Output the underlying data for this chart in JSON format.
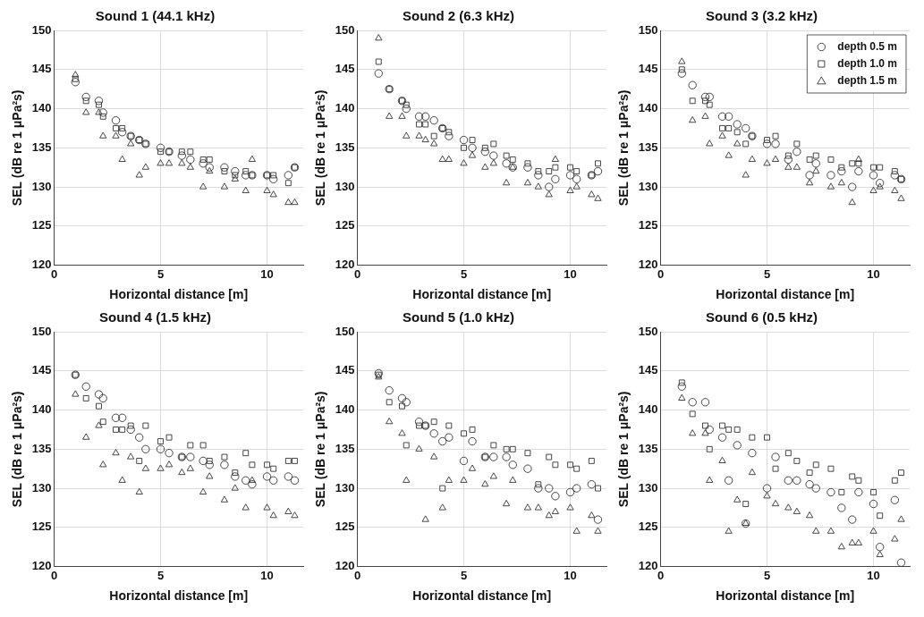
{
  "chart_data": [
    {
      "type": "scatter",
      "title": "Sound 1 (44.1 kHz)",
      "xlabel": "Horizontal distance [m]",
      "ylabel": "SEL (dB re 1 μPa²s)",
      "xlim": [
        0,
        11.7
      ],
      "xticks": [
        0,
        5,
        10
      ],
      "ylim": [
        120,
        150
      ],
      "yticks": [
        120,
        125,
        130,
        135,
        140,
        145,
        150
      ],
      "grid": true,
      "legend": false,
      "x": [
        1,
        1.5,
        2.1,
        2.3,
        2.9,
        3.2,
        3.6,
        4.0,
        4.3,
        5.0,
        5.4,
        6.0,
        6.4,
        7.0,
        7.3,
        8.0,
        8.5,
        9.0,
        9.3,
        10.0,
        10.3,
        11.0,
        11.3
      ],
      "series": [
        {
          "color": "#333333",
          "marker": "circle",
          "values": [
            143.4,
            141.5,
            141,
            139.5,
            138.5,
            137,
            136.5,
            136,
            135.5,
            135,
            134.5,
            134,
            133.5,
            133,
            132.5,
            132.5,
            132,
            131.5,
            131.5,
            131.5,
            131,
            131.5,
            132.5
          ]
        },
        {
          "color": "#333333",
          "marker": "square",
          "values": [
            143.8,
            141,
            140.5,
            139,
            137.5,
            137.5,
            136.5,
            136,
            135.5,
            134.5,
            134.5,
            134.5,
            134.5,
            133.5,
            133.5,
            132,
            131.5,
            132,
            131.5,
            131.5,
            131.5,
            130.5,
            132.5
          ]
        },
        {
          "color": "#333333",
          "marker": "triangle",
          "values": [
            144.3,
            139.5,
            139.5,
            136.5,
            136.5,
            133.5,
            135.5,
            131.5,
            132.5,
            133,
            133,
            133,
            132.5,
            130,
            132,
            130,
            131,
            129.5,
            133.5,
            129.5,
            129,
            128,
            128
          ]
        }
      ]
    },
    {
      "type": "scatter",
      "title": "Sound 2 (6.3 kHz)",
      "xlabel": "Horizontal distance [m]",
      "ylabel": "SEL (dB re 1 μPa²s)",
      "xlim": [
        0,
        11.7
      ],
      "xticks": [
        0,
        5,
        10
      ],
      "ylim": [
        120,
        150
      ],
      "yticks": [
        120,
        125,
        130,
        135,
        140,
        145,
        150
      ],
      "grid": true,
      "legend": false,
      "x": [
        1,
        1.5,
        2.1,
        2.3,
        2.9,
        3.2,
        3.6,
        4.0,
        4.3,
        5.0,
        5.4,
        6.0,
        6.4,
        7.0,
        7.3,
        8.0,
        8.5,
        9.0,
        9.3,
        10.0,
        10.3,
        11.0,
        11.3
      ],
      "series": [
        {
          "color": "#333333",
          "marker": "circle",
          "values": [
            144.5,
            142.5,
            141,
            140,
            139,
            139,
            138.5,
            137.5,
            136.5,
            136,
            135,
            134.5,
            134,
            133,
            132.5,
            132.5,
            131.5,
            130,
            131,
            131.5,
            131,
            131.5,
            132
          ]
        },
        {
          "color": "#333333",
          "marker": "square",
          "values": [
            146,
            142.5,
            141,
            140.5,
            138,
            138,
            136.5,
            137.5,
            137,
            135,
            136,
            135,
            135.5,
            134,
            133.5,
            133,
            132,
            132,
            132.5,
            132.5,
            132,
            131.5,
            133
          ]
        },
        {
          "color": "#333333",
          "marker": "triangle",
          "values": [
            149,
            139,
            139,
            136.5,
            136.5,
            136,
            135.5,
            133.5,
            133.5,
            133,
            134,
            132.5,
            133,
            130.5,
            132.5,
            130.5,
            130,
            129,
            133.5,
            129.5,
            130,
            129,
            128.5
          ]
        }
      ]
    },
    {
      "type": "scatter",
      "title": "Sound 3 (3.2 kHz)",
      "xlabel": "Horizontal distance [m]",
      "ylabel": "SEL (dB re 1 μPa²s)",
      "xlim": [
        0,
        11.7
      ],
      "xticks": [
        0,
        5,
        10
      ],
      "ylim": [
        120,
        150
      ],
      "yticks": [
        120,
        125,
        130,
        135,
        140,
        145,
        150
      ],
      "grid": true,
      "legend": "top right",
      "x": [
        1,
        1.5,
        2.1,
        2.3,
        2.9,
        3.2,
        3.6,
        4.0,
        4.3,
        5.0,
        5.4,
        6.0,
        6.4,
        7.0,
        7.3,
        8.0,
        8.5,
        9.0,
        9.3,
        10.0,
        10.3,
        11.0,
        11.3
      ],
      "series": [
        {
          "name": "depth 0.5 m",
          "color": "#333333",
          "marker": "circle",
          "values": [
            144.5,
            143,
            141.5,
            141.5,
            139,
            139,
            138,
            137.5,
            136.5,
            135.5,
            135.5,
            133.5,
            134.5,
            131.5,
            133,
            131.5,
            132,
            130,
            132,
            131.5,
            130.5,
            131.5,
            131
          ]
        },
        {
          "name": "depth 1.0 m",
          "color": "#333333",
          "marker": "square",
          "values": [
            145,
            141,
            141,
            140.5,
            137.5,
            137.5,
            137,
            135.5,
            136.5,
            136,
            136.5,
            134,
            135.5,
            133.5,
            134,
            133.5,
            132.5,
            133,
            133,
            132.5,
            132.5,
            132,
            131
          ]
        },
        {
          "name": "depth 1.5 m",
          "color": "#333333",
          "marker": "triangle",
          "values": [
            146,
            138.5,
            139,
            135.5,
            136.5,
            134,
            135.5,
            131.5,
            133.5,
            133,
            133.5,
            132.5,
            132.5,
            130.5,
            132,
            130,
            130.5,
            128,
            133.5,
            129.5,
            130,
            129.5,
            128.5
          ]
        }
      ]
    },
    {
      "type": "scatter",
      "title": "Sound 4 (1.5 kHz)",
      "xlabel": "Horizontal distance [m]",
      "ylabel": "SEL (dB re 1 μPa²s)",
      "xlim": [
        0,
        11.7
      ],
      "xticks": [
        0,
        5,
        10
      ],
      "ylim": [
        120,
        150
      ],
      "yticks": [
        120,
        125,
        130,
        135,
        140,
        145,
        150
      ],
      "grid": true,
      "legend": false,
      "x": [
        1,
        1.5,
        2.1,
        2.3,
        2.9,
        3.2,
        3.6,
        4.0,
        4.3,
        5.0,
        5.4,
        6.0,
        6.4,
        7.0,
        7.3,
        8.0,
        8.5,
        9.0,
        9.3,
        10.0,
        10.3,
        11.0,
        11.3
      ],
      "series": [
        {
          "color": "#333333",
          "marker": "circle",
          "values": [
            144.5,
            143,
            142,
            141.5,
            139,
            139,
            137.5,
            136.5,
            135,
            135,
            134.5,
            134,
            134,
            133.5,
            133,
            133,
            131.5,
            131,
            130.5,
            131.5,
            131,
            131.5,
            131
          ]
        },
        {
          "color": "#333333",
          "marker": "square",
          "values": [
            144.5,
            141.5,
            140.5,
            138.5,
            137.5,
            137.5,
            138,
            133.5,
            138,
            136,
            136.5,
            134,
            135.5,
            135.5,
            133.5,
            134,
            132,
            134.5,
            133,
            133,
            132.5,
            133.5,
            133.5
          ]
        },
        {
          "color": "#333333",
          "marker": "triangle",
          "values": [
            142,
            136.5,
            138,
            133,
            134.5,
            131,
            134,
            129.5,
            132.5,
            132.5,
            133,
            132,
            132.5,
            129.5,
            131.5,
            128.5,
            130,
            127.5,
            131,
            127.5,
            126.5,
            127,
            126.5
          ]
        }
      ]
    },
    {
      "type": "scatter",
      "title": "Sound 5 (1.0 kHz)",
      "xlabel": "Horizontal distance [m]",
      "ylabel": "SEL (dB re 1 μPa²s)",
      "xlim": [
        0,
        11.7
      ],
      "xticks": [
        0,
        5,
        10
      ],
      "ylim": [
        120,
        150
      ],
      "yticks": [
        120,
        125,
        130,
        135,
        140,
        145,
        150
      ],
      "grid": true,
      "legend": false,
      "x": [
        1,
        1.5,
        2.1,
        2.3,
        2.9,
        3.2,
        3.6,
        4.0,
        4.3,
        5.0,
        5.4,
        6.0,
        6.4,
        7.0,
        7.3,
        8.0,
        8.5,
        9.0,
        9.3,
        10.0,
        10.3,
        11.0,
        11.3
      ],
      "series": [
        {
          "color": "#333333",
          "marker": "circle",
          "values": [
            144.7,
            142.5,
            141.5,
            141,
            138.5,
            138,
            137,
            136,
            136.5,
            133.5,
            136,
            134,
            134,
            134,
            133,
            132.5,
            130,
            130,
            129,
            129.5,
            130,
            130.5,
            126
          ]
        },
        {
          "color": "#333333",
          "marker": "square",
          "values": [
            144.5,
            141,
            140.5,
            135.5,
            138,
            138,
            138.5,
            130,
            138,
            137,
            137.5,
            134,
            135.5,
            135,
            135,
            134.5,
            130.5,
            134,
            133,
            133,
            132.5,
            133.5,
            130
          ]
        },
        {
          "color": "#333333",
          "marker": "triangle",
          "values": [
            144.2,
            138.5,
            137,
            131,
            135,
            126,
            134,
            127.5,
            131,
            131,
            132.5,
            130.5,
            131.5,
            128,
            131,
            127.5,
            127.5,
            126.5,
            127,
            127.5,
            124.5,
            126.5,
            124.5
          ]
        }
      ]
    },
    {
      "type": "scatter",
      "title": "Sound 6 (0.5 kHz)",
      "xlabel": "Horizontal distance [m]",
      "ylabel": "SEL (dB re 1 μPa²s)",
      "xlim": [
        0,
        11.7
      ],
      "xticks": [
        0,
        5,
        10
      ],
      "ylim": [
        120,
        150
      ],
      "yticks": [
        120,
        125,
        130,
        135,
        140,
        145,
        150
      ],
      "grid": true,
      "legend": false,
      "x": [
        1,
        1.5,
        2.1,
        2.3,
        2.9,
        3.2,
        3.6,
        4.0,
        4.3,
        5.0,
        5.4,
        6.0,
        6.4,
        7.0,
        7.3,
        8.0,
        8.5,
        9.0,
        9.3,
        10.0,
        10.3,
        11.0,
        11.3
      ],
      "series": [
        {
          "color": "#333333",
          "marker": "circle",
          "values": [
            143,
            141,
            141,
            137.5,
            136.5,
            131,
            135.5,
            125.5,
            134.5,
            130,
            134,
            131,
            131,
            130.5,
            130,
            129.5,
            127.5,
            126,
            129.5,
            128,
            122.5,
            128.5,
            120.5
          ]
        },
        {
          "color": "#333333",
          "marker": "square",
          "values": [
            143.5,
            139.5,
            138,
            135,
            138,
            137.5,
            137.5,
            128,
            136.5,
            136.5,
            132.5,
            134.5,
            133.5,
            132,
            133,
            132.5,
            129.5,
            131.5,
            131,
            129.5,
            126.5,
            131,
            132
          ]
        },
        {
          "color": "#333333",
          "marker": "triangle",
          "values": [
            141.5,
            137,
            137,
            131,
            133.5,
            124.5,
            128.5,
            125.5,
            132,
            129,
            128,
            127.5,
            127,
            126.5,
            124.5,
            124.5,
            122.5,
            123,
            123,
            124.5,
            121.5,
            123.5,
            126
          ]
        }
      ]
    }
  ]
}
